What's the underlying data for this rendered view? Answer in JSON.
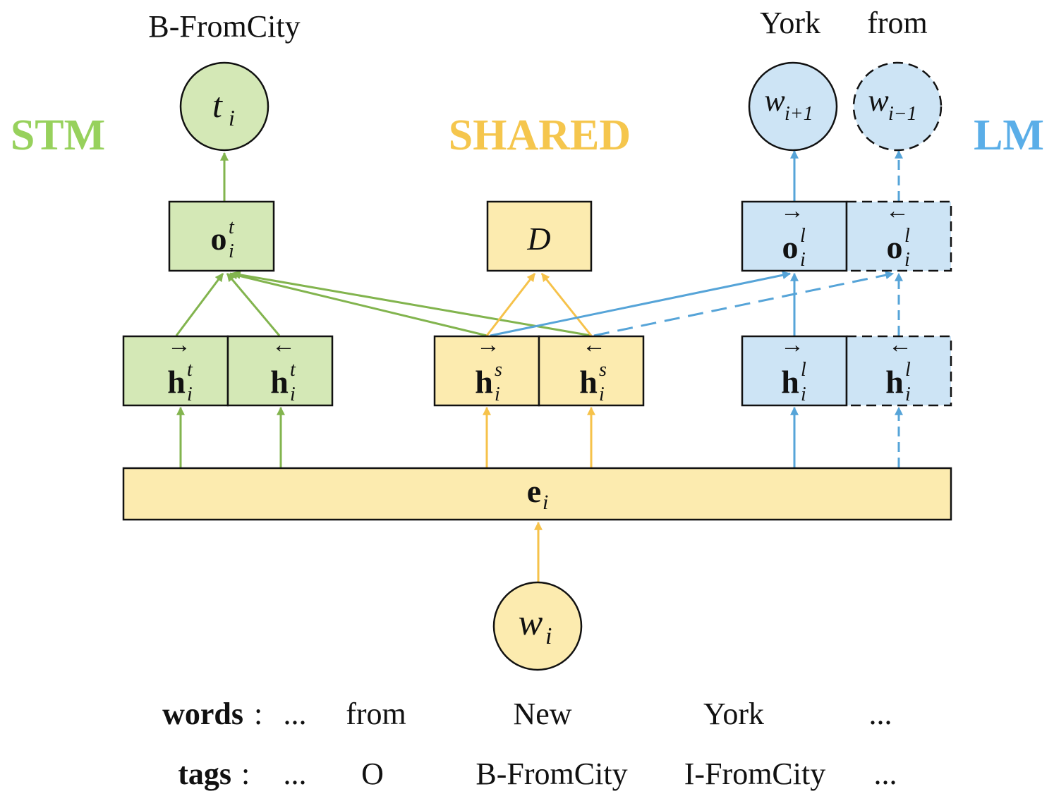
{
  "colors": {
    "green": "#82b44e",
    "green_fill": "#d4e8b6",
    "yellow": "#f6c24a",
    "yellow_fill": "#fcebaf",
    "blue": "#56a4d8",
    "blue_fill": "#cde4f5",
    "stm_label": "#97d15c",
    "shared_label": "#f5c64d",
    "lm_label": "#5aaee8"
  },
  "sections": {
    "stm": "STM",
    "shared": "SHARED",
    "lm": "LM"
  },
  "outputs": {
    "tag_label": "B-FromCity",
    "next_word_label": "York",
    "prev_word_label": "from"
  },
  "nodes": {
    "t": {
      "base": "t",
      "sub": "i"
    },
    "w_next": {
      "base": "w",
      "sub": "i+1"
    },
    "w_prev": {
      "base": "w",
      "sub": "i−1"
    },
    "w_input": {
      "base": "w",
      "sub": "i"
    },
    "o_t": {
      "base": "o",
      "sup": "t",
      "sub": "i"
    },
    "D": "D",
    "o_l_fwd": {
      "base": "o",
      "sup": "l",
      "sub": "i",
      "arrow": "→"
    },
    "o_l_bwd": {
      "base": "o",
      "sup": "l",
      "sub": "i",
      "arrow": "←"
    },
    "h_t_fwd": {
      "base": "h",
      "sup": "t",
      "sub": "i",
      "arrow": "→"
    },
    "h_t_bwd": {
      "base": "h",
      "sup": "t",
      "sub": "i",
      "arrow": "←"
    },
    "h_s_fwd": {
      "base": "h",
      "sup": "s",
      "sub": "i",
      "arrow": "→"
    },
    "h_s_bwd": {
      "base": "h",
      "sup": "s",
      "sub": "i",
      "arrow": "←"
    },
    "h_l_fwd": {
      "base": "h",
      "sup": "l",
      "sub": "i",
      "arrow": "→"
    },
    "h_l_bwd": {
      "base": "h",
      "sup": "l",
      "sub": "i",
      "arrow": "←"
    },
    "e": {
      "base": "e",
      "sub": "i"
    }
  },
  "sequence": {
    "words_label": "words",
    "tags_label": "tags",
    "colon": ":",
    "words": [
      "...",
      "from",
      "New",
      "York",
      "..."
    ],
    "tags": [
      "...",
      "O",
      "B-FromCity",
      "I-FromCity",
      "..."
    ]
  }
}
